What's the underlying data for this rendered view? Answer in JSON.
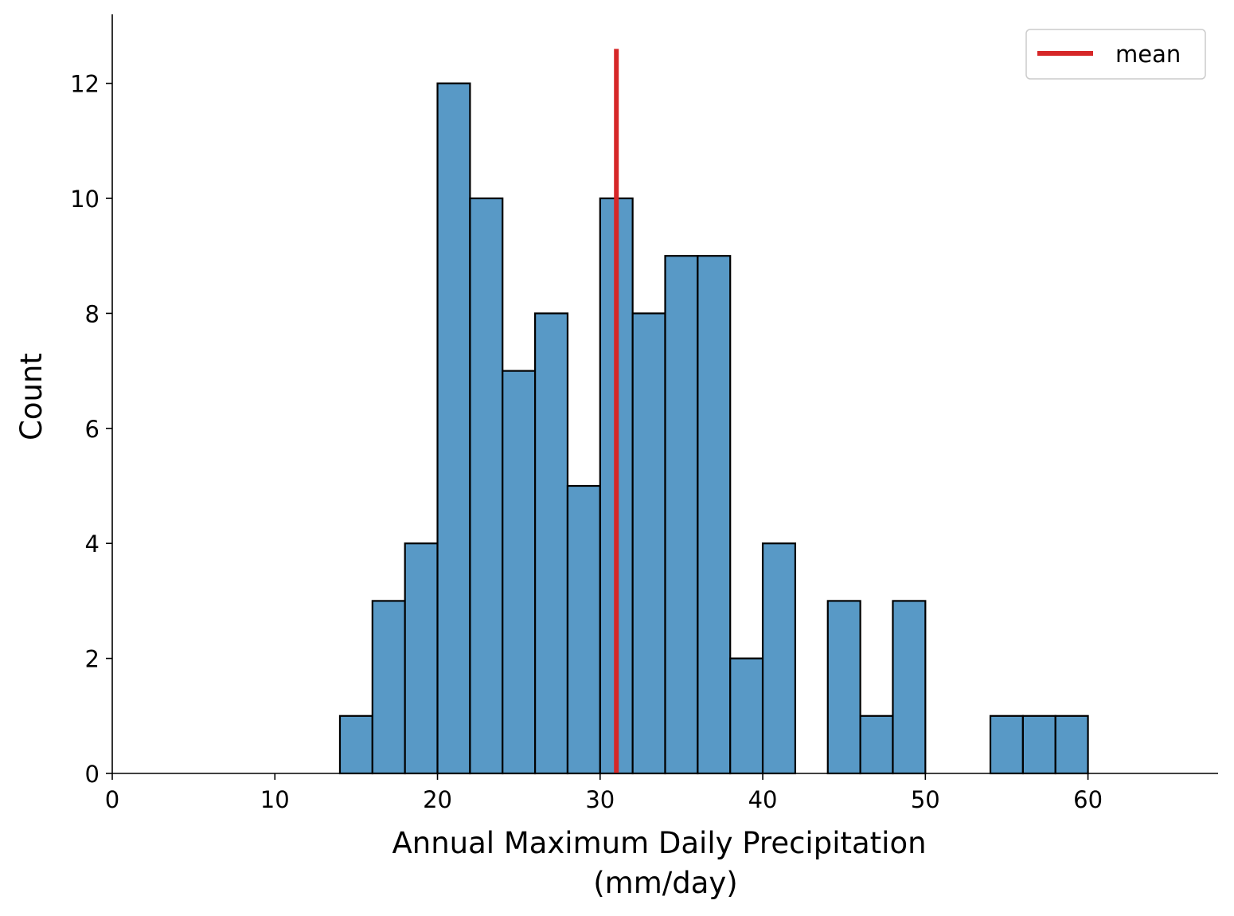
{
  "chart_data": {
    "type": "histogram",
    "title": "",
    "xlabel_line1": "Annual Maximum Daily Precipitation",
    "xlabel_line2": "(mm/day)",
    "ylabel": "Count",
    "xlim": [
      0,
      68
    ],
    "ylim": [
      0,
      13.2
    ],
    "xticks": [
      0,
      10,
      20,
      30,
      40,
      50,
      60
    ],
    "yticks": [
      0,
      2,
      4,
      6,
      8,
      10,
      12
    ],
    "bin_width": 2,
    "bins": [
      {
        "start": 14,
        "end": 16,
        "count": 1
      },
      {
        "start": 16,
        "end": 18,
        "count": 3
      },
      {
        "start": 18,
        "end": 20,
        "count": 4
      },
      {
        "start": 20,
        "end": 22,
        "count": 12
      },
      {
        "start": 22,
        "end": 24,
        "count": 10
      },
      {
        "start": 24,
        "end": 26,
        "count": 7
      },
      {
        "start": 26,
        "end": 28,
        "count": 8
      },
      {
        "start": 28,
        "end": 30,
        "count": 5
      },
      {
        "start": 30,
        "end": 32,
        "count": 10
      },
      {
        "start": 32,
        "end": 34,
        "count": 8
      },
      {
        "start": 34,
        "end": 36,
        "count": 9
      },
      {
        "start": 36,
        "end": 38,
        "count": 9
      },
      {
        "start": 38,
        "end": 40,
        "count": 2
      },
      {
        "start": 40,
        "end": 42,
        "count": 4
      },
      {
        "start": 42,
        "end": 44,
        "count": 0
      },
      {
        "start": 44,
        "end": 46,
        "count": 3
      },
      {
        "start": 46,
        "end": 48,
        "count": 1
      },
      {
        "start": 48,
        "end": 50,
        "count": 3
      },
      {
        "start": 50,
        "end": 52,
        "count": 0
      },
      {
        "start": 52,
        "end": 54,
        "count": 0
      },
      {
        "start": 54,
        "end": 56,
        "count": 1
      },
      {
        "start": 56,
        "end": 58,
        "count": 1
      },
      {
        "start": 58,
        "end": 60,
        "count": 1
      }
    ],
    "mean_line": {
      "label": "mean",
      "x": 31,
      "y_range": [
        0,
        12.6
      ]
    },
    "legend": {
      "position": "top-right",
      "entries": [
        "mean"
      ]
    },
    "colors": {
      "bar_fill": "#5899c6",
      "bar_edge": "#000000",
      "mean_line": "#d62728"
    }
  }
}
